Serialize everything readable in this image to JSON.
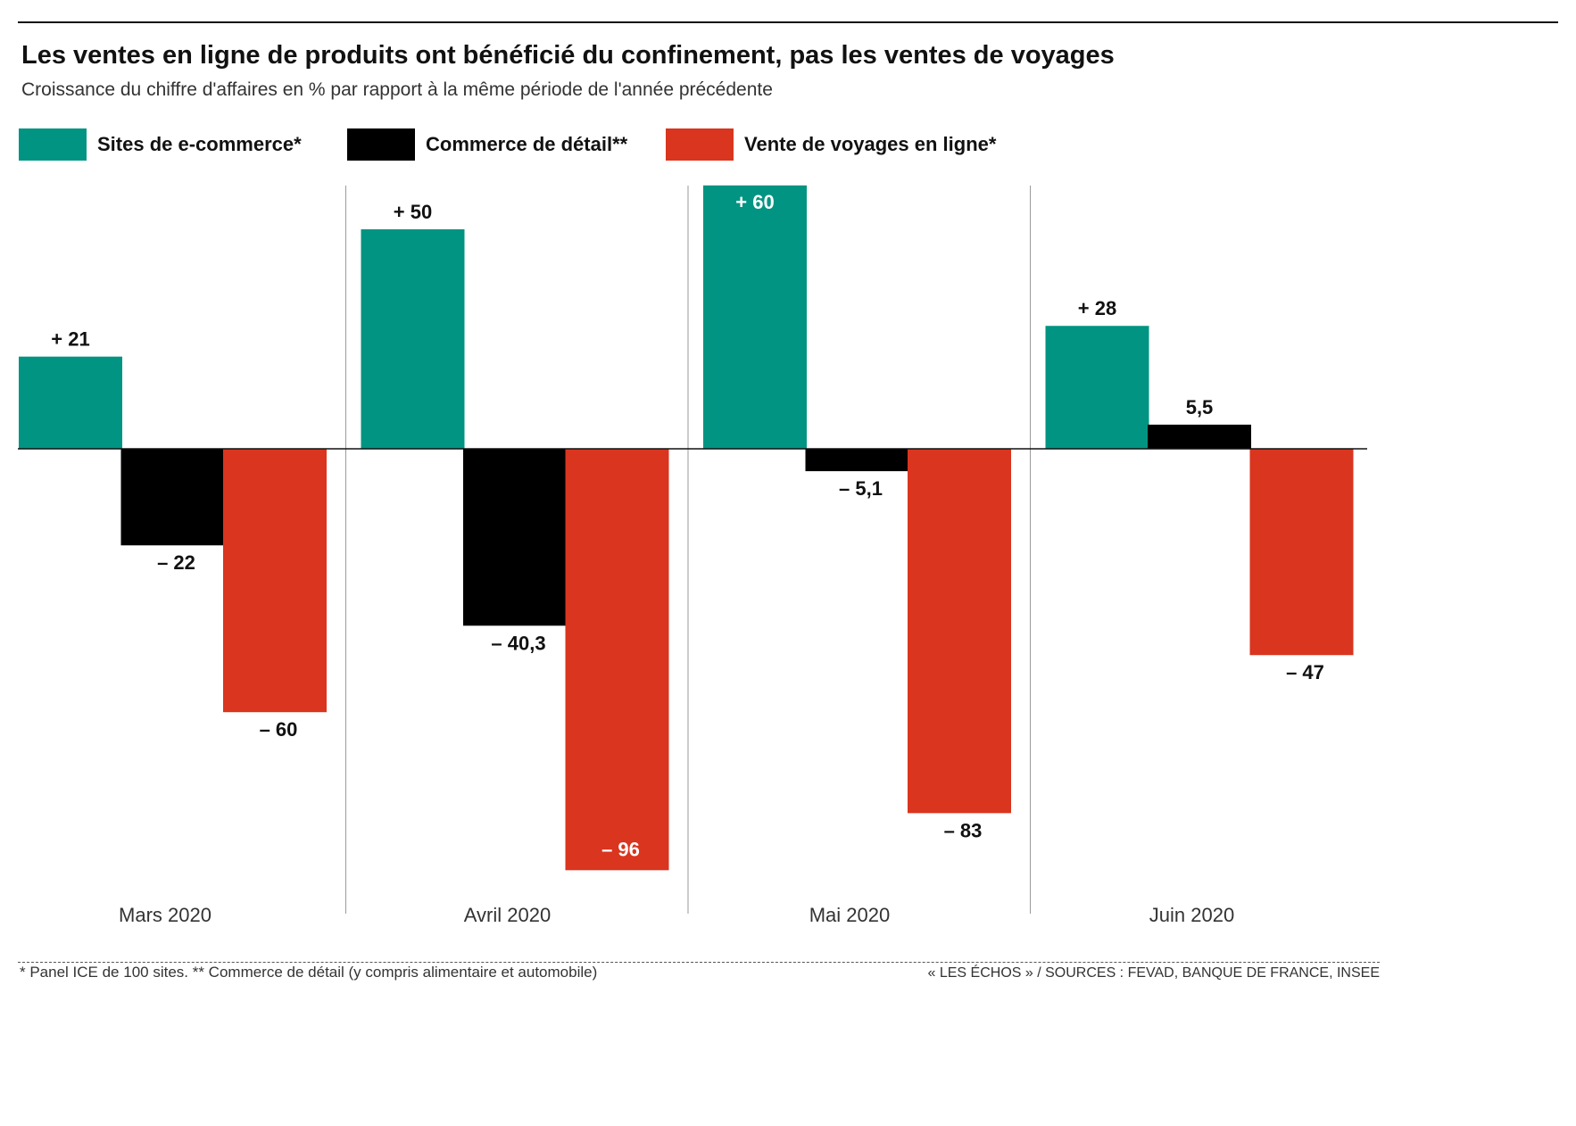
{
  "title": "Les ventes en ligne de produits ont bénéficié du confinement, pas les ventes de voyages",
  "subtitle": "Croissance du chiffre d'affaires en % par rapport à la même période de l'année précédente",
  "legend": [
    {
      "label": "Sites de e-commerce*",
      "color": "#019482"
    },
    {
      "label": "Commerce de détail**",
      "color": "#000000"
    },
    {
      "label": "Vente de voyages en ligne*",
      "color": "#d9351f"
    }
  ],
  "footnote": "* Panel ICE de 100 sites. ** Commerce de détail (y compris alimentaire et automobile)",
  "source": "« LES ÉCHOS » / SOURCES : FEVAD, BANQUE DE FRANCE, INSEE",
  "chart_data": {
    "type": "bar",
    "categories": [
      "Mars 2020",
      "Avril 2020",
      "Mai 2020",
      "Juin 2020"
    ],
    "series": [
      {
        "name": "Sites de e-commerce*",
        "color": "#019482",
        "values": [
          21,
          50,
          60,
          28
        ],
        "labels": [
          "+ 21",
          "+ 50",
          "+ 60",
          "+ 28"
        ]
      },
      {
        "name": "Commerce de détail**",
        "color": "#000000",
        "values": [
          -22,
          -40.3,
          -5.1,
          5.5
        ],
        "labels": [
          "– 22",
          "– 40,3",
          "– 5,1",
          "5,5"
        ]
      },
      {
        "name": "Vente de voyages en ligne*",
        "color": "#d9351f",
        "values": [
          -60,
          -96,
          -83,
          -47
        ],
        "labels": [
          "– 60",
          "– 96",
          "– 83",
          "– 47"
        ]
      }
    ],
    "xlabel": "",
    "ylabel": "",
    "ylim": [
      -96,
      60
    ],
    "grid": false,
    "legend_position": "top-left"
  }
}
